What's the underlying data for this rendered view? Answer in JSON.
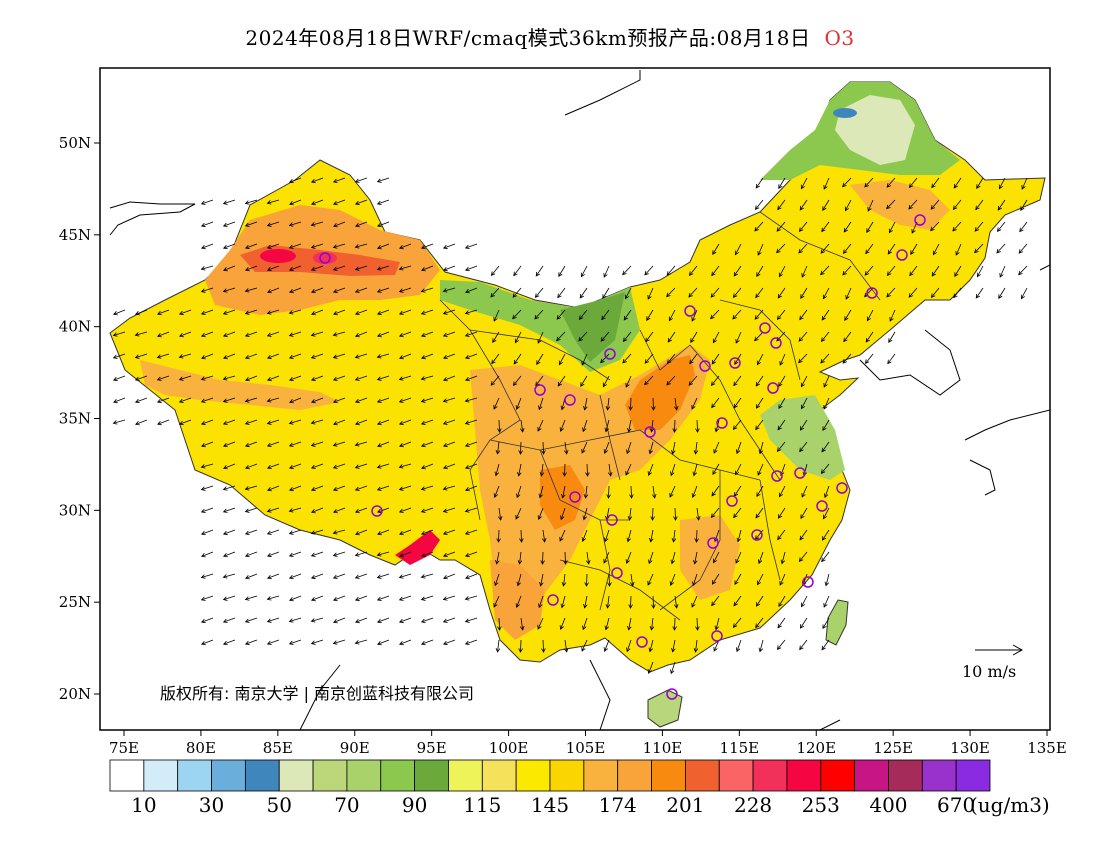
{
  "header": {
    "title": "2024年08月18日WRF/cmaq模式36km预报产品:08月18日",
    "species": "O3",
    "species_color": "#e03030"
  },
  "map": {
    "lon_ticks": [
      "75E",
      "80E",
      "85E",
      "90E",
      "95E",
      "100E",
      "105E",
      "110E",
      "115E",
      "120E",
      "125E",
      "130E",
      "135E"
    ],
    "lat_ticks": [
      "20N",
      "25N",
      "30N",
      "35N",
      "40N",
      "45N",
      "50N"
    ],
    "copyright": "版权所有: 南京大学 | 南京创蓝科技有限公司",
    "wind_reference": "10 m/s"
  },
  "legend": {
    "unit": "(ug/m3)",
    "labels": [
      "10",
      "30",
      "50",
      "70",
      "90",
      "115",
      "145",
      "174",
      "201",
      "228",
      "253",
      "400",
      "670"
    ],
    "colors": [
      "#ffffff",
      "#d3ecfa",
      "#9cd5f2",
      "#6aaedc",
      "#3f86bd",
      "#dde8b8",
      "#bcd67a",
      "#a9d36a",
      "#8cc84e",
      "#6aa93a",
      "#eff35a",
      "#f5e25a",
      "#fbea00",
      "#fbd500",
      "#f9b23e",
      "#f9a43a",
      "#f98a10",
      "#f1612f",
      "#fa6464",
      "#f2305a",
      "#f50542",
      "#ff0000",
      "#c71585",
      "#a62a5a",
      "#9932cc",
      "#8a2be2"
    ]
  }
}
